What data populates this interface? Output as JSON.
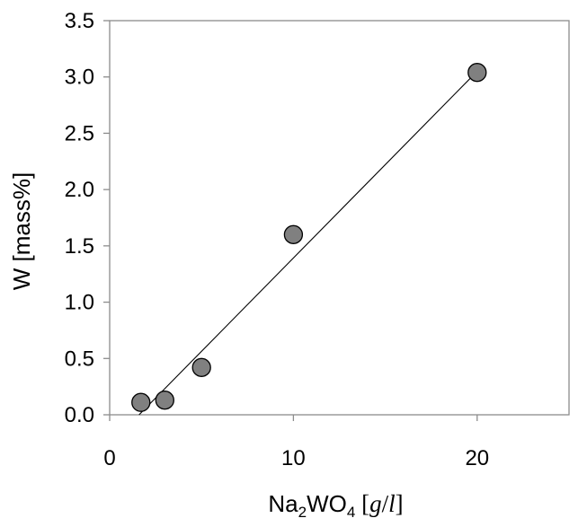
{
  "chart_data": {
    "type": "scatter",
    "title": "",
    "xlabel": {
      "parts": [
        {
          "text": "Na",
          "role": "normal"
        },
        {
          "text": "2",
          "role": "sub"
        },
        {
          "text": "WO",
          "role": "normal"
        },
        {
          "text": "4",
          "role": "sub"
        },
        {
          "text": " [",
          "role": "unit"
        },
        {
          "text": "g",
          "role": "unit-italic"
        },
        {
          "text": "/",
          "role": "unit"
        },
        {
          "text": "l",
          "role": "unit-italic"
        },
        {
          "text": "]",
          "role": "unit"
        }
      ]
    },
    "ylabel": "W  [mass%]",
    "xlim": [
      0,
      25
    ],
    "ylim": [
      0,
      3.5
    ],
    "xticks": [
      0,
      10,
      20
    ],
    "xtick_labels": [
      "0",
      "10",
      "20"
    ],
    "yticks": [
      0,
      0.5,
      1.0,
      1.5,
      2.0,
      2.5,
      3.0,
      3.5
    ],
    "ytick_labels": [
      "0.0",
      "0.5",
      "1.0",
      "1.5",
      "2.0",
      "2.5",
      "3.0",
      "3.5"
    ],
    "grid": false,
    "legend": "none",
    "series": [
      {
        "kind": "points",
        "marker_color": "#808080",
        "edge_color": "#000000",
        "x": [
          1.7,
          3.0,
          5.0,
          10.0,
          20.0
        ],
        "y": [
          0.11,
          0.13,
          0.42,
          1.6,
          3.04
        ]
      },
      {
        "kind": "fit-line",
        "line_color": "#000000",
        "x": [
          1.6,
          20.0
        ],
        "y": [
          0.0,
          3.05
        ]
      }
    ]
  }
}
